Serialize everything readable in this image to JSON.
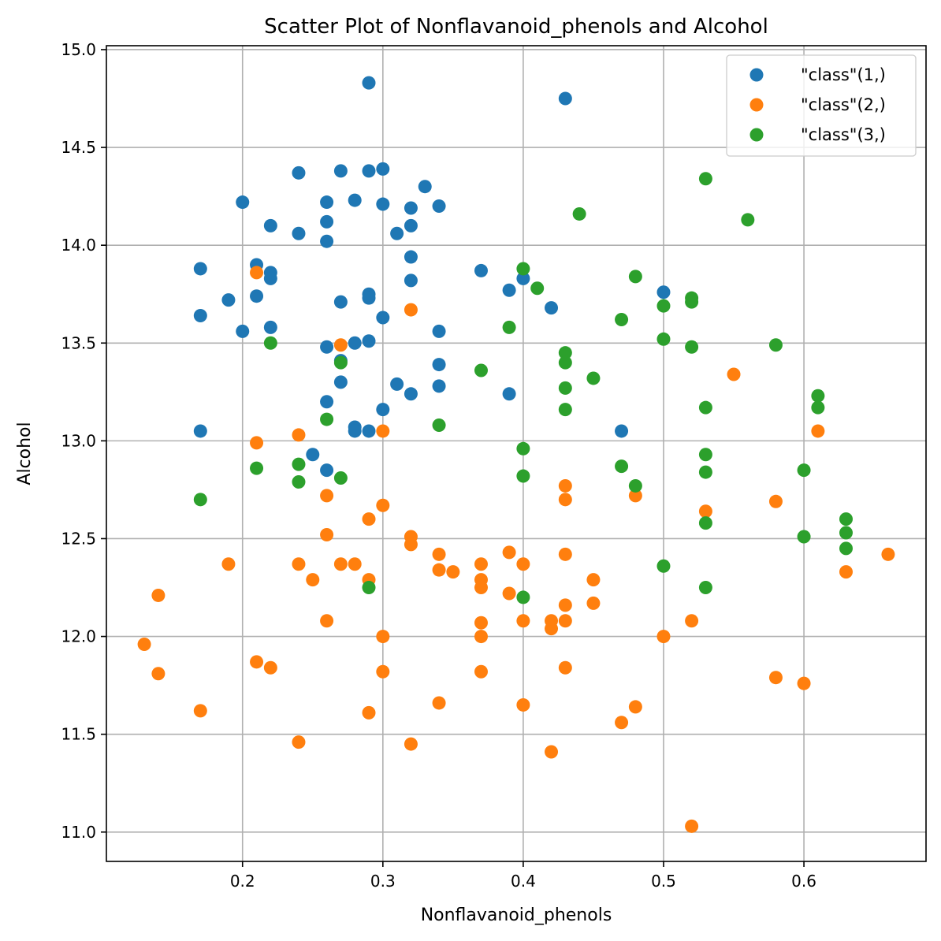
{
  "chart_data": {
    "type": "scatter",
    "title": "Scatter Plot of Nonflavanoid_phenols and Alcohol",
    "xlabel": "Nonflavanoid_phenols",
    "ylabel": "Alcohol",
    "xlim": [
      0.103,
      0.687
    ],
    "ylim": [
      10.85,
      15.02
    ],
    "xticks": [
      0.2,
      0.3,
      0.4,
      0.5,
      0.6
    ],
    "xtick_labels": [
      "0.2",
      "0.3",
      "0.4",
      "0.5",
      "0.6"
    ],
    "yticks": [
      11.0,
      11.5,
      12.0,
      12.5,
      13.0,
      13.5,
      14.0,
      14.5,
      15.0
    ],
    "ytick_labels": [
      "11.0",
      "11.5",
      "12.0",
      "12.5",
      "13.0",
      "13.5",
      "14.0",
      "14.5",
      "15.0"
    ],
    "grid": true,
    "legend_position": "top-right",
    "series": [
      {
        "name": "\"class\"(1,)",
        "color": "#1f77b4",
        "points": [
          [
            0.29,
            14.83
          ],
          [
            0.43,
            14.75
          ],
          [
            0.24,
            14.37
          ],
          [
            0.27,
            14.38
          ],
          [
            0.29,
            14.38
          ],
          [
            0.3,
            14.39
          ],
          [
            0.33,
            14.3
          ],
          [
            0.2,
            14.22
          ],
          [
            0.26,
            14.22
          ],
          [
            0.28,
            14.23
          ],
          [
            0.3,
            14.21
          ],
          [
            0.32,
            14.19
          ],
          [
            0.34,
            14.2
          ],
          [
            0.26,
            14.12
          ],
          [
            0.22,
            14.1
          ],
          [
            0.24,
            14.06
          ],
          [
            0.31,
            14.06
          ],
          [
            0.32,
            14.1
          ],
          [
            0.26,
            14.02
          ],
          [
            0.32,
            13.94
          ],
          [
            0.21,
            13.9
          ],
          [
            0.17,
            13.88
          ],
          [
            0.22,
            13.86
          ],
          [
            0.22,
            13.83
          ],
          [
            0.37,
            13.87
          ],
          [
            0.4,
            13.83
          ],
          [
            0.32,
            13.82
          ],
          [
            0.39,
            13.77
          ],
          [
            0.21,
            13.74
          ],
          [
            0.19,
            13.72
          ],
          [
            0.29,
            13.75
          ],
          [
            0.29,
            13.73
          ],
          [
            0.27,
            13.71
          ],
          [
            0.5,
            13.76
          ],
          [
            0.42,
            13.68
          ],
          [
            0.17,
            13.64
          ],
          [
            0.3,
            13.63
          ],
          [
            0.22,
            13.58
          ],
          [
            0.2,
            13.56
          ],
          [
            0.34,
            13.56
          ],
          [
            0.26,
            13.48
          ],
          [
            0.28,
            13.5
          ],
          [
            0.29,
            13.51
          ],
          [
            0.27,
            13.41
          ],
          [
            0.34,
            13.39
          ],
          [
            0.27,
            13.3
          ],
          [
            0.31,
            13.29
          ],
          [
            0.34,
            13.28
          ],
          [
            0.32,
            13.24
          ],
          [
            0.39,
            13.24
          ],
          [
            0.26,
            13.2
          ],
          [
            0.3,
            13.16
          ],
          [
            0.28,
            13.07
          ],
          [
            0.28,
            13.05
          ],
          [
            0.29,
            13.05
          ],
          [
            0.17,
            13.05
          ],
          [
            0.47,
            13.05
          ],
          [
            0.25,
            12.93
          ],
          [
            0.26,
            12.85
          ]
        ]
      },
      {
        "name": "\"class\"(2,)",
        "color": "#ff7f0e",
        "points": [
          [
            0.21,
            13.86
          ],
          [
            0.32,
            13.67
          ],
          [
            0.27,
            13.49
          ],
          [
            0.55,
            13.34
          ],
          [
            0.24,
            13.03
          ],
          [
            0.3,
            13.05
          ],
          [
            0.61,
            13.05
          ],
          [
            0.21,
            12.99
          ],
          [
            0.43,
            12.77
          ],
          [
            0.48,
            12.72
          ],
          [
            0.26,
            12.72
          ],
          [
            0.43,
            12.7
          ],
          [
            0.58,
            12.69
          ],
          [
            0.3,
            12.67
          ],
          [
            0.53,
            12.64
          ],
          [
            0.29,
            12.6
          ],
          [
            0.26,
            12.52
          ],
          [
            0.32,
            12.51
          ],
          [
            0.32,
            12.47
          ],
          [
            0.39,
            12.43
          ],
          [
            0.34,
            12.42
          ],
          [
            0.43,
            12.42
          ],
          [
            0.66,
            12.42
          ],
          [
            0.19,
            12.37
          ],
          [
            0.24,
            12.37
          ],
          [
            0.27,
            12.37
          ],
          [
            0.28,
            12.37
          ],
          [
            0.37,
            12.37
          ],
          [
            0.4,
            12.37
          ],
          [
            0.34,
            12.34
          ],
          [
            0.35,
            12.33
          ],
          [
            0.63,
            12.33
          ],
          [
            0.25,
            12.29
          ],
          [
            0.29,
            12.29
          ],
          [
            0.37,
            12.29
          ],
          [
            0.45,
            12.29
          ],
          [
            0.37,
            12.25
          ],
          [
            0.39,
            12.22
          ],
          [
            0.14,
            12.21
          ],
          [
            0.43,
            12.16
          ],
          [
            0.45,
            12.17
          ],
          [
            0.26,
            12.08
          ],
          [
            0.37,
            12.07
          ],
          [
            0.4,
            12.08
          ],
          [
            0.42,
            12.08
          ],
          [
            0.43,
            12.08
          ],
          [
            0.52,
            12.08
          ],
          [
            0.42,
            12.04
          ],
          [
            0.3,
            12.0
          ],
          [
            0.37,
            12.0
          ],
          [
            0.5,
            12.0
          ],
          [
            0.13,
            11.96
          ],
          [
            0.21,
            11.87
          ],
          [
            0.22,
            11.84
          ],
          [
            0.43,
            11.84
          ],
          [
            0.14,
            11.81
          ],
          [
            0.3,
            11.82
          ],
          [
            0.37,
            11.82
          ],
          [
            0.58,
            11.79
          ],
          [
            0.6,
            11.76
          ],
          [
            0.34,
            11.66
          ],
          [
            0.4,
            11.65
          ],
          [
            0.48,
            11.64
          ],
          [
            0.17,
            11.62
          ],
          [
            0.29,
            11.61
          ],
          [
            0.47,
            11.56
          ],
          [
            0.24,
            11.46
          ],
          [
            0.32,
            11.45
          ],
          [
            0.42,
            11.41
          ],
          [
            0.52,
            11.03
          ]
        ]
      },
      {
        "name": "\"class\"(3,)",
        "color": "#2ca02c",
        "points": [
          [
            0.53,
            14.34
          ],
          [
            0.44,
            14.16
          ],
          [
            0.56,
            14.13
          ],
          [
            0.4,
            13.88
          ],
          [
            0.48,
            13.84
          ],
          [
            0.41,
            13.78
          ],
          [
            0.52,
            13.73
          ],
          [
            0.52,
            13.71
          ],
          [
            0.5,
            13.69
          ],
          [
            0.47,
            13.62
          ],
          [
            0.39,
            13.58
          ],
          [
            0.5,
            13.52
          ],
          [
            0.22,
            13.5
          ],
          [
            0.58,
            13.49
          ],
          [
            0.52,
            13.48
          ],
          [
            0.43,
            13.45
          ],
          [
            0.43,
            13.4
          ],
          [
            0.27,
            13.4
          ],
          [
            0.37,
            13.36
          ],
          [
            0.45,
            13.32
          ],
          [
            0.43,
            13.27
          ],
          [
            0.61,
            13.23
          ],
          [
            0.53,
            13.17
          ],
          [
            0.61,
            13.17
          ],
          [
            0.43,
            13.16
          ],
          [
            0.26,
            13.11
          ],
          [
            0.34,
            13.08
          ],
          [
            0.4,
            12.96
          ],
          [
            0.53,
            12.93
          ],
          [
            0.24,
            12.88
          ],
          [
            0.47,
            12.87
          ],
          [
            0.21,
            12.86
          ],
          [
            0.6,
            12.85
          ],
          [
            0.53,
            12.84
          ],
          [
            0.4,
            12.82
          ],
          [
            0.27,
            12.81
          ],
          [
            0.24,
            12.79
          ],
          [
            0.48,
            12.77
          ],
          [
            0.17,
            12.7
          ],
          [
            0.63,
            12.6
          ],
          [
            0.53,
            12.58
          ],
          [
            0.63,
            12.53
          ],
          [
            0.6,
            12.51
          ],
          [
            0.63,
            12.45
          ],
          [
            0.5,
            12.36
          ],
          [
            0.29,
            12.25
          ],
          [
            0.53,
            12.25
          ],
          [
            0.4,
            12.2
          ]
        ]
      }
    ]
  }
}
